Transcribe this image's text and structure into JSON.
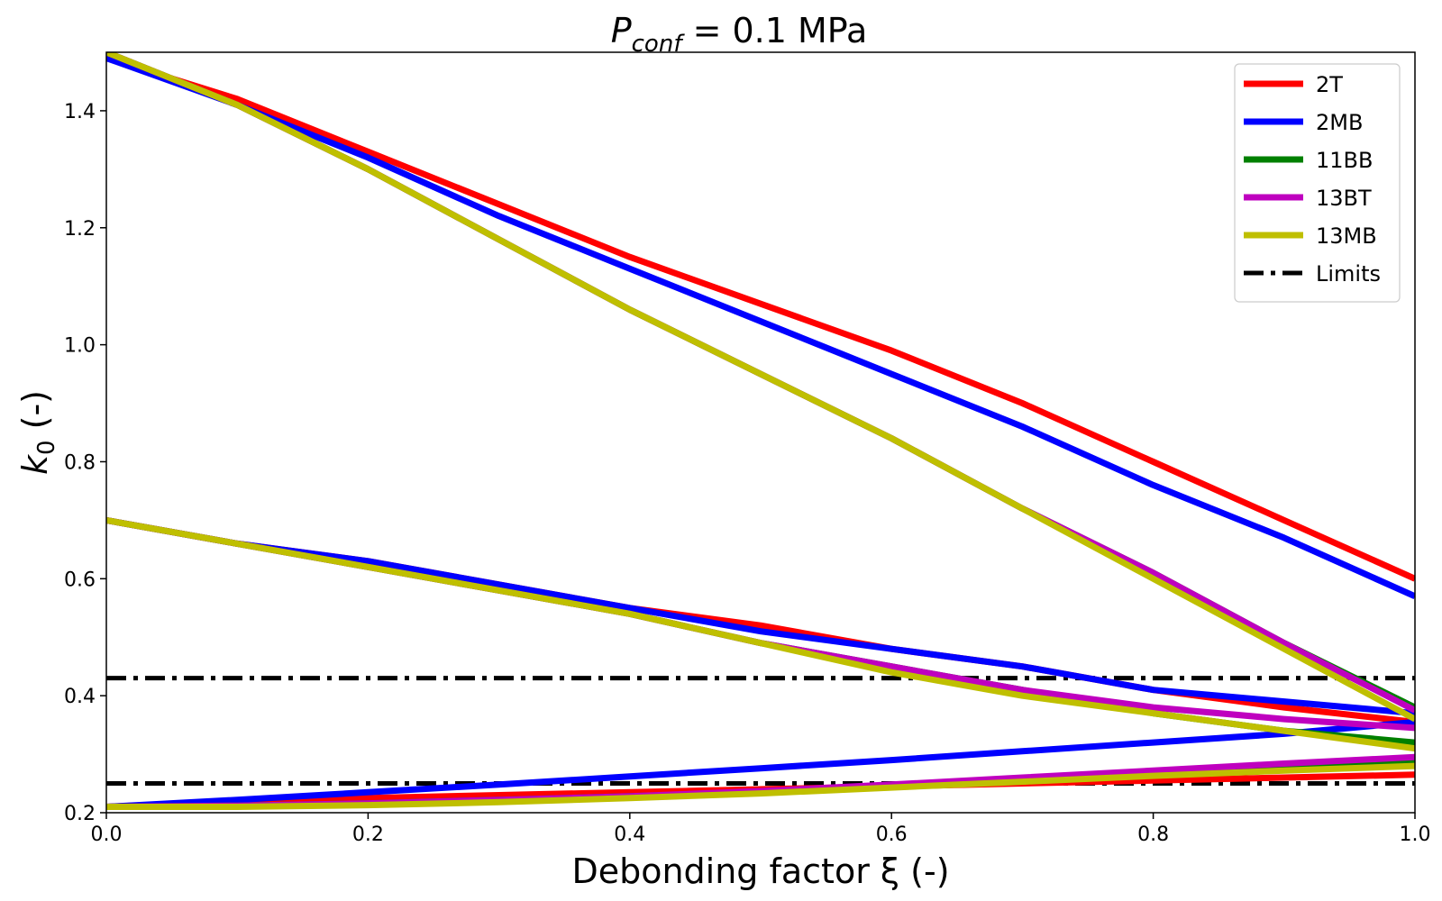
{
  "chart_data": {
    "type": "line",
    "title": "P_conf = 0.1 MPa",
    "title_parts": {
      "symbol": "P",
      "subscript": "conf",
      "rest": " = 0.1 MPa"
    },
    "xlabel": "Debonding factor ξ (-)",
    "ylabel": "k_0 (-)",
    "ylabel_parts": {
      "symbol": "k",
      "subscript": "0",
      "rest": " (-)"
    },
    "xlim": [
      0.0,
      1.0
    ],
    "ylim": [
      0.2,
      1.5
    ],
    "xticks": [
      0.0,
      0.2,
      0.4,
      0.6,
      0.8,
      1.0
    ],
    "xtick_labels": [
      "0.0",
      "0.2",
      "0.4",
      "0.6",
      "0.8",
      "1.0"
    ],
    "yticks": [
      0.2,
      0.4,
      0.6,
      0.8,
      1.0,
      1.2,
      1.4
    ],
    "ytick_labels": [
      "0.2",
      "0.4",
      "0.6",
      "0.8",
      "1.0",
      "1.2",
      "1.4"
    ],
    "grid": false,
    "legend_position": "top-right",
    "limits": {
      "name": "Limits",
      "color": "#000000",
      "values": [
        0.25,
        0.43
      ]
    },
    "series": [
      {
        "name": "2T",
        "color": "#ff0000",
        "curves": [
          {
            "x": [
              0,
              0.1,
              0.2,
              0.3,
              0.4,
              0.5,
              0.6,
              0.7,
              0.8,
              0.9,
              1.0
            ],
            "y": [
              1.49,
              1.42,
              1.33,
              1.24,
              1.15,
              1.07,
              0.99,
              0.9,
              0.8,
              0.7,
              0.6
            ]
          },
          {
            "x": [
              0,
              0.1,
              0.2,
              0.3,
              0.4,
              0.5,
              0.6,
              0.7,
              0.8,
              0.9,
              1.0
            ],
            "y": [
              0.7,
              0.66,
              0.63,
              0.59,
              0.55,
              0.52,
              0.48,
              0.45,
              0.41,
              0.38,
              0.355
            ]
          },
          {
            "x": [
              0,
              0.1,
              0.2,
              0.3,
              0.4,
              0.5,
              0.6,
              0.7,
              0.8,
              0.9,
              1.0
            ],
            "y": [
              0.21,
              0.22,
              0.225,
              0.23,
              0.235,
              0.24,
              0.245,
              0.25,
              0.255,
              0.26,
              0.265
            ]
          }
        ]
      },
      {
        "name": "2MB",
        "color": "#0000ff",
        "curves": [
          {
            "x": [
              0,
              0.1,
              0.2,
              0.3,
              0.4,
              0.5,
              0.6,
              0.7,
              0.8,
              0.9,
              1.0
            ],
            "y": [
              1.49,
              1.41,
              1.32,
              1.22,
              1.13,
              1.04,
              0.95,
              0.86,
              0.76,
              0.67,
              0.57
            ]
          },
          {
            "x": [
              0,
              0.1,
              0.2,
              0.3,
              0.4,
              0.5,
              0.6,
              0.7,
              0.8,
              0.9,
              1.0
            ],
            "y": [
              0.7,
              0.66,
              0.63,
              0.59,
              0.55,
              0.51,
              0.48,
              0.45,
              0.41,
              0.39,
              0.37
            ]
          },
          {
            "x": [
              0,
              0.1,
              0.2,
              0.3,
              0.4,
              0.5,
              0.6,
              0.7,
              0.8,
              0.9,
              1.0
            ],
            "y": [
              0.21,
              0.222,
              0.235,
              0.248,
              0.262,
              0.276,
              0.29,
              0.305,
              0.32,
              0.335,
              0.355
            ]
          }
        ]
      },
      {
        "name": "11BB",
        "color": "#008000",
        "curves": [
          {
            "x": [
              0,
              0.1,
              0.2,
              0.3,
              0.4,
              0.5,
              0.6,
              0.7,
              0.8,
              0.9,
              1.0
            ],
            "y": [
              1.5,
              1.41,
              1.3,
              1.18,
              1.06,
              0.95,
              0.84,
              0.72,
              0.61,
              0.49,
              0.38
            ]
          },
          {
            "x": [
              0,
              0.1,
              0.2,
              0.3,
              0.4,
              0.5,
              0.6,
              0.7,
              0.8,
              0.9,
              1.0
            ],
            "y": [
              0.7,
              0.66,
              0.62,
              0.58,
              0.54,
              0.49,
              0.45,
              0.41,
              0.37,
              0.34,
              0.32
            ]
          },
          {
            "x": [
              0,
              0.1,
              0.2,
              0.3,
              0.4,
              0.5,
              0.6,
              0.7,
              0.8,
              0.9,
              1.0
            ],
            "y": [
              0.21,
              0.212,
              0.216,
              0.222,
              0.228,
              0.235,
              0.245,
              0.255,
              0.265,
              0.275,
              0.285
            ]
          }
        ]
      },
      {
        "name": "13BT",
        "color": "#bf00bf",
        "curves": [
          {
            "x": [
              0,
              0.1,
              0.2,
              0.3,
              0.4,
              0.5,
              0.6,
              0.7,
              0.8,
              0.9,
              1.0
            ],
            "y": [
              1.5,
              1.41,
              1.3,
              1.18,
              1.06,
              0.95,
              0.84,
              0.72,
              0.61,
              0.49,
              0.375
            ]
          },
          {
            "x": [
              0,
              0.1,
              0.2,
              0.3,
              0.4,
              0.5,
              0.6,
              0.7,
              0.8,
              0.9,
              1.0
            ],
            "y": [
              0.7,
              0.66,
              0.62,
              0.58,
              0.54,
              0.49,
              0.45,
              0.41,
              0.38,
              0.36,
              0.345
            ]
          },
          {
            "x": [
              0,
              0.1,
              0.2,
              0.3,
              0.4,
              0.5,
              0.6,
              0.7,
              0.8,
              0.9,
              1.0
            ],
            "y": [
              0.21,
              0.212,
              0.216,
              0.222,
              0.228,
              0.237,
              0.248,
              0.26,
              0.272,
              0.284,
              0.295
            ]
          }
        ]
      },
      {
        "name": "13MB",
        "color": "#bfbf00",
        "curves": [
          {
            "x": [
              0,
              0.1,
              0.2,
              0.3,
              0.4,
              0.5,
              0.6,
              0.7,
              0.8,
              0.9,
              1.0
            ],
            "y": [
              1.5,
              1.41,
              1.3,
              1.18,
              1.06,
              0.95,
              0.84,
              0.72,
              0.6,
              0.48,
              0.36
            ]
          },
          {
            "x": [
              0,
              0.1,
              0.2,
              0.3,
              0.4,
              0.5,
              0.6,
              0.7,
              0.8,
              0.9,
              1.0
            ],
            "y": [
              0.7,
              0.66,
              0.62,
              0.58,
              0.54,
              0.49,
              0.44,
              0.4,
              0.37,
              0.34,
              0.31
            ]
          },
          {
            "x": [
              0,
              0.1,
              0.2,
              0.3,
              0.4,
              0.5,
              0.6,
              0.7,
              0.8,
              0.9,
              1.0
            ],
            "y": [
              0.21,
              0.21,
              0.213,
              0.218,
              0.225,
              0.233,
              0.243,
              0.253,
              0.263,
              0.272,
              0.28
            ]
          }
        ]
      }
    ],
    "legend": [
      {
        "name": "2T",
        "color": "#ff0000",
        "style": "solid"
      },
      {
        "name": "2MB",
        "color": "#0000ff",
        "style": "solid"
      },
      {
        "name": "11BB",
        "color": "#008000",
        "style": "solid"
      },
      {
        "name": "13BT",
        "color": "#bf00bf",
        "style": "solid"
      },
      {
        "name": "13MB",
        "color": "#bfbf00",
        "style": "solid"
      },
      {
        "name": "Limits",
        "color": "#000000",
        "style": "dashdot"
      }
    ]
  }
}
